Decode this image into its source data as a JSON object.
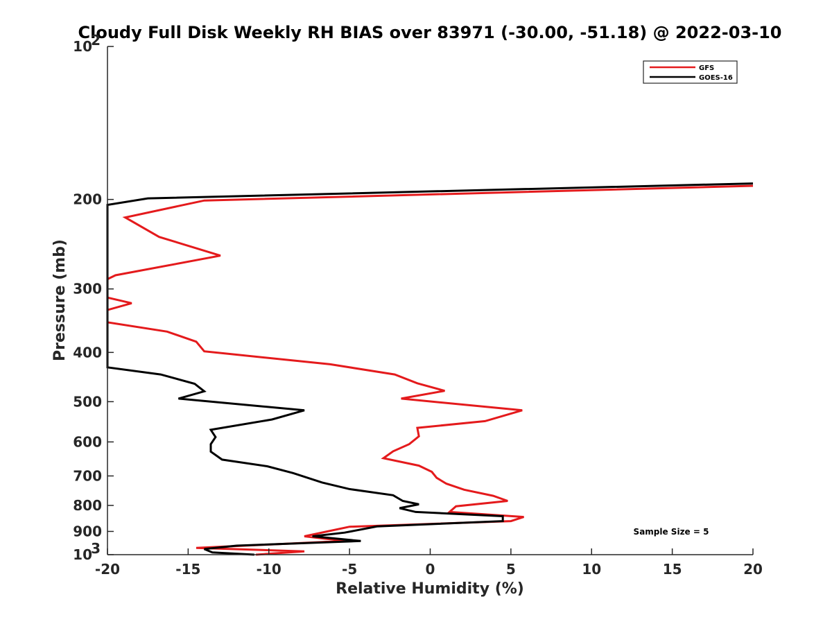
{
  "chart_data": {
    "type": "line",
    "title": "Cloudy Full Disk Weekly RH BIAS over 83971 (-30.00, -51.18) @ 2022-03-10",
    "xlabel": "Relative Humidity (%)",
    "ylabel": "Pressure (mb)",
    "xlim": [
      -20,
      20
    ],
    "ylim": [
      100,
      1000
    ],
    "y_scale": "log",
    "y_reversed": true,
    "grid": false,
    "legend_position": "top-right",
    "x_ticks": [
      "-20",
      "-15",
      "-10",
      "-5",
      "0",
      "5",
      "10",
      "15",
      "20"
    ],
    "y_ticks": [
      {
        "value": 100,
        "base": "10",
        "exp": "2"
      },
      {
        "value": 200,
        "label": "200"
      },
      {
        "value": 300,
        "label": "300"
      },
      {
        "value": 400,
        "label": "400"
      },
      {
        "value": 500,
        "label": "500"
      },
      {
        "value": 600,
        "label": "600"
      },
      {
        "value": 700,
        "label": "700"
      },
      {
        "value": 800,
        "label": "800"
      },
      {
        "value": 900,
        "label": "900"
      },
      {
        "value": 1000,
        "base": "10",
        "exp": "3"
      }
    ],
    "annotation": "Sample Size = 5",
    "series": [
      {
        "name": "GFS",
        "color": "#e41a1c",
        "x": [
          20,
          -14,
          -18.9,
          -16.8,
          -13,
          -19.5,
          -20,
          -20,
          -18.5,
          -20,
          -20,
          -16.3,
          -14.5,
          -14,
          -6.2,
          -2.2,
          -0.8,
          0.9,
          -1.8,
          5.7,
          3.4,
          -0.8,
          -0.7,
          -1.3,
          -2.3,
          -2.9,
          -0.7,
          0.1,
          0.4,
          1.0,
          2.1,
          3.9,
          4.8,
          1.6,
          1.2,
          5.8,
          5.0,
          -5.0,
          -7.8,
          -5.3,
          -14.5,
          -7.8,
          -10.8
        ],
        "y": [
          188,
          201,
          217,
          237,
          258,
          282,
          287,
          312,
          320,
          330,
          349,
          364,
          381,
          398,
          422,
          442,
          460,
          476,
          493,
          520,
          546,
          563,
          585,
          606,
          626,
          646,
          668,
          687,
          706,
          725,
          745,
          766,
          784,
          803,
          824,
          843,
          859,
          881,
          920,
          940,
          970,
          985,
          1000
        ]
      },
      {
        "name": "GOES-16",
        "color": "#000000",
        "x": [
          20,
          -17.5,
          -20,
          -20,
          -16.7,
          -14.6,
          -14,
          -15.6,
          -7.8,
          -9.8,
          -13.6,
          -13.3,
          -13.6,
          -13.6,
          -12.9,
          -10.1,
          -8.5,
          -6.7,
          -5,
          -2.3,
          -1.7,
          -0.7,
          -1.9,
          -0.9,
          4.5,
          4.5,
          -3.3,
          -5.3,
          -7.3,
          -4.3,
          -12,
          -14,
          -13.5,
          -10.9
        ],
        "y": [
          186,
          199,
          205,
          428,
          442,
          461,
          477,
          493,
          520,
          542,
          568,
          587,
          606,
          627,
          650,
          670,
          691,
          721,
          743,
          764,
          784,
          796,
          810,
          824,
          840,
          859,
          880,
          905,
          920,
          940,
          960,
          975,
          990,
          1000
        ]
      }
    ]
  }
}
